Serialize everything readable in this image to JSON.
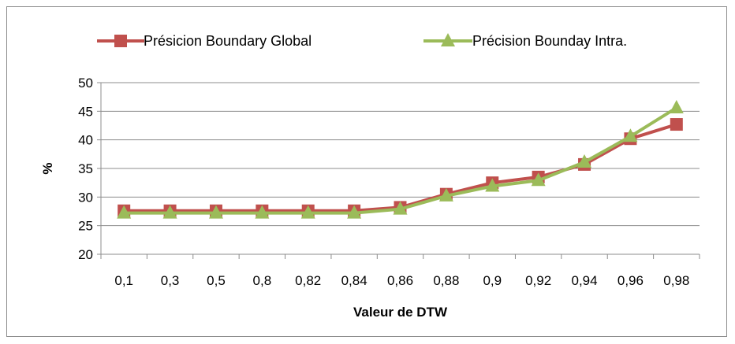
{
  "chart_data": {
    "type": "line",
    "title": "",
    "xlabel": "Valeur de DTW",
    "ylabel": "%",
    "ylim": [
      20,
      50
    ],
    "yticks": [
      20,
      25,
      30,
      35,
      40,
      45,
      50
    ],
    "grid": true,
    "legend_position": "top",
    "categories": [
      "0,1",
      "0,3",
      "0,5",
      "0,8",
      "0,82",
      "0,84",
      "0,86",
      "0,88",
      "0,9",
      "0,92",
      "0,94",
      "0,96",
      "0,98"
    ],
    "series": [
      {
        "name": "Présicion Boundary Global",
        "color": "#c0504d",
        "marker": "square",
        "values": [
          27.6,
          27.6,
          27.6,
          27.6,
          27.6,
          27.6,
          28.2,
          30.5,
          32.5,
          33.5,
          35.7,
          40.2,
          42.7
        ]
      },
      {
        "name": "Précision Bounday Intra.",
        "color": "#9bbb59",
        "marker": "triangle",
        "values": [
          27.2,
          27.2,
          27.2,
          27.2,
          27.2,
          27.2,
          27.9,
          30.2,
          31.9,
          32.9,
          36.1,
          40.6,
          45.6
        ]
      }
    ]
  }
}
